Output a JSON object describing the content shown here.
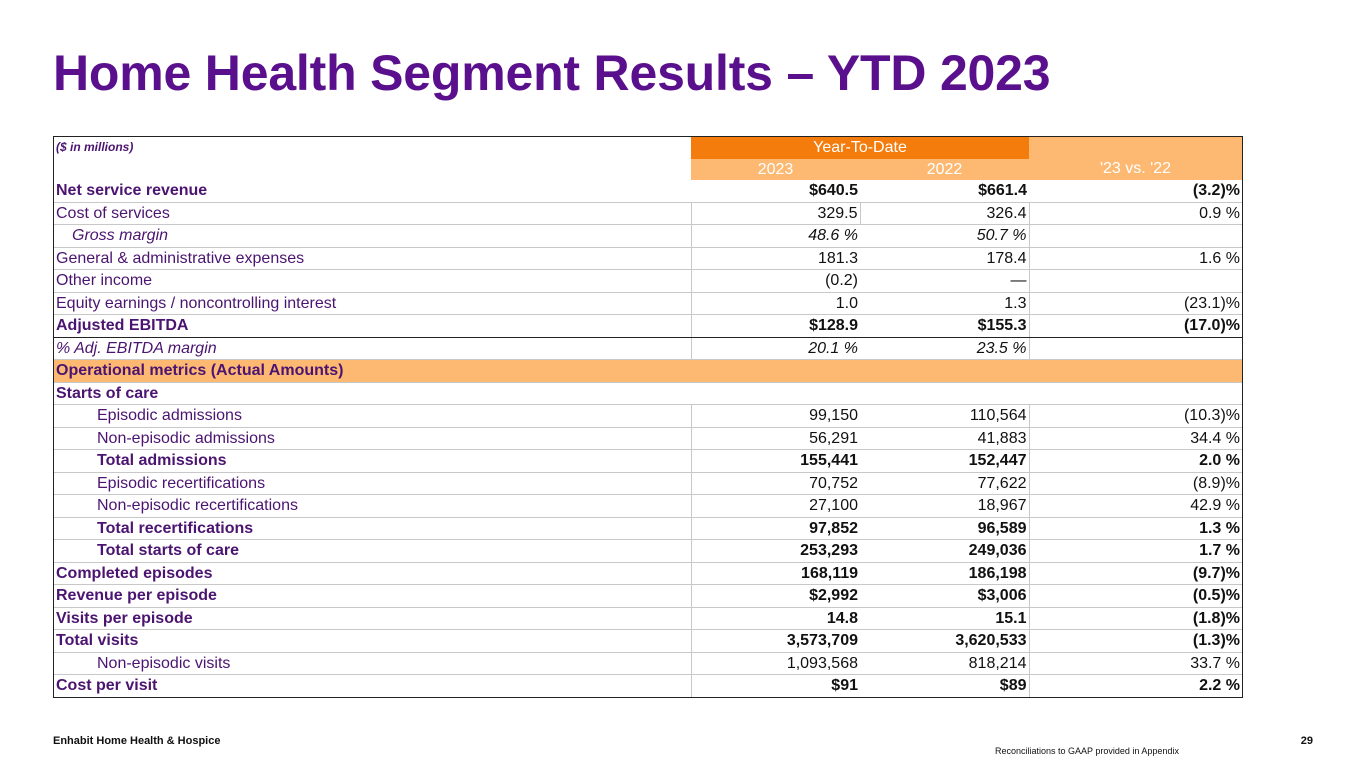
{
  "title": "Home Health Segment Results – YTD 2023",
  "table": {
    "units": "($ in millions)",
    "group_header": "Year-To-Date",
    "col_2023": "2023",
    "col_2022": "2022",
    "col_change": "'23 vs. '22",
    "rows": [
      {
        "label": "Net service revenue",
        "v23": "$640.5",
        "v22": "$661.4",
        "chg": "(3.2)%"
      },
      {
        "label": "Cost of services",
        "v23": "329.5",
        "v22": "326.4",
        "chg": "0.9 %"
      },
      {
        "label": "Gross margin",
        "v23": "48.6 %",
        "v22": "50.7 %",
        "chg": ""
      },
      {
        "label": "General & administrative expenses",
        "v23": "181.3",
        "v22": "178.4",
        "chg": "1.6 %"
      },
      {
        "label": "Other income",
        "v23": "(0.2)",
        "v22": "—",
        "chg": ""
      },
      {
        "label": "Equity earnings / noncontrolling interest",
        "v23": "1.0",
        "v22": "1.3",
        "chg": "(23.1)%"
      },
      {
        "label": "Adjusted EBITDA",
        "v23": "$128.9",
        "v22": "$155.3",
        "chg": "(17.0)%"
      },
      {
        "label": "%  Adj. EBITDA margin",
        "v23": "20.1 %",
        "v22": "23.5 %",
        "chg": ""
      },
      {
        "label": "Operational metrics (Actual Amounts)"
      },
      {
        "label": "Starts of care",
        "v23": "",
        "v22": "",
        "chg": ""
      },
      {
        "label": "Episodic admissions",
        "v23": "99,150",
        "v22": "110,564",
        "chg": "(10.3)%"
      },
      {
        "label": "Non-episodic admissions",
        "v23": "56,291",
        "v22": "41,883",
        "chg": "34.4 %"
      },
      {
        "label": "Total admissions",
        "v23": "155,441",
        "v22": "152,447",
        "chg": "2.0 %"
      },
      {
        "label": "Episodic recertifications",
        "v23": "70,752",
        "v22": "77,622",
        "chg": "(8.9)%"
      },
      {
        "label": "Non-episodic recertifications",
        "v23": "27,100",
        "v22": "18,967",
        "chg": "42.9 %"
      },
      {
        "label": "Total recertifications",
        "v23": "97,852",
        "v22": "96,589",
        "chg": "1.3 %"
      },
      {
        "label": "Total starts of care",
        "v23": "253,293",
        "v22": "249,036",
        "chg": "1.7 %"
      },
      {
        "label": "Completed episodes",
        "v23": "168,119",
        "v22": "186,198",
        "chg": "(9.7)%"
      },
      {
        "label": "Revenue per episode",
        "v23": "$2,992",
        "v22": "$3,006",
        "chg": "(0.5)%"
      },
      {
        "label": "Visits per episode",
        "v23": "14.8",
        "v22": "15.1",
        "chg": "(1.8)%"
      },
      {
        "label": "Total visits",
        "v23": "3,573,709",
        "v22": "3,620,533",
        "chg": "(1.3)%"
      },
      {
        "label": "Non-episodic visits",
        "v23": "1,093,568",
        "v22": "818,214",
        "chg": "33.7 %"
      },
      {
        "label": "Cost per visit",
        "v23": "$91",
        "v22": "$89",
        "chg": "2.2 %"
      }
    ]
  },
  "footer": {
    "company": "Enhabit Home Health & Hospice",
    "page_number": "29",
    "note": "Reconciliations to GAAP provided in Appendix"
  }
}
